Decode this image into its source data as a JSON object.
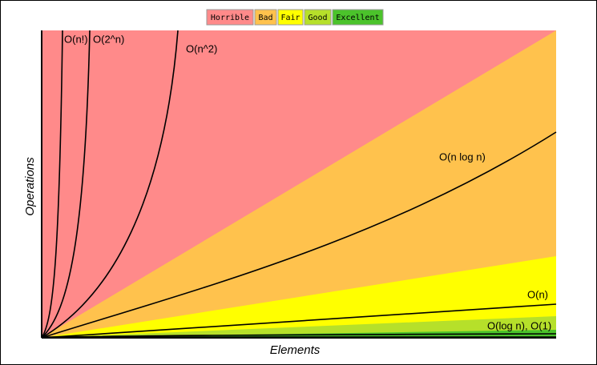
{
  "legend": {
    "items": [
      "Horrible",
      "Bad",
      "Fair",
      "Good",
      "Excellent"
    ]
  },
  "curves": [
    "O(n!)",
    "O(2^n)",
    "O(n^2)",
    "O(n log n)",
    "O(n)",
    "O(log n), O(1)"
  ],
  "axes": {
    "y_label": "Operations",
    "x_label": "Elements"
  }
}
